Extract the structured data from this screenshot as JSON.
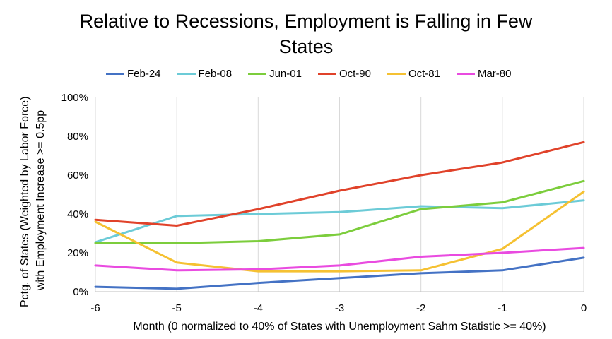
{
  "chart_data": {
    "type": "line",
    "title_lines": [
      "Relative to Recessions, Employment is Falling in Few",
      "States"
    ],
    "xlabel": "Month (0 normalized to 40% of States with Unemployment Sahm Statistic >= 40%)",
    "ylabel_lines": [
      "Pctg. of States (Weighted by Labor Force)",
      "with Employment Increase >= 0.5pp"
    ],
    "x": [
      -6,
      -5,
      -4,
      -3,
      -2,
      -1,
      0
    ],
    "xlim": [
      -6,
      0
    ],
    "ylim": [
      0,
      100
    ],
    "x_tick_labels": [
      "-6",
      "-5",
      "-4",
      "-3",
      "-2",
      "-1",
      "0"
    ],
    "y_ticks": [
      0,
      20,
      40,
      60,
      80,
      100
    ],
    "y_tick_labels": [
      "0%",
      "20%",
      "40%",
      "60%",
      "80%",
      "100%"
    ],
    "gridlines": "vertical",
    "legend_position": "top",
    "series": [
      {
        "name": "Feb-24",
        "color": "#4472c4",
        "values": [
          2.5,
          1.5,
          4.5,
          7,
          9.5,
          11,
          17.5
        ]
      },
      {
        "name": "Feb-08",
        "color": "#6ccbd7",
        "values": [
          25.5,
          39,
          40,
          41,
          44,
          43,
          47
        ]
      },
      {
        "name": "Jun-01",
        "color": "#7ccd3c",
        "values": [
          25,
          25,
          26,
          29.5,
          42.5,
          46,
          57
        ]
      },
      {
        "name": "Oct-90",
        "color": "#e0422a",
        "values": [
          37,
          34,
          42.5,
          52,
          60,
          66.5,
          77
        ]
      },
      {
        "name": "Oct-81",
        "color": "#f5c132",
        "values": [
          36,
          15,
          10.5,
          10.5,
          11,
          22,
          51.5
        ]
      },
      {
        "name": "Mar-80",
        "color": "#e94be0",
        "values": [
          13.5,
          11,
          11.5,
          13.5,
          18,
          20,
          22.5
        ]
      }
    ]
  }
}
